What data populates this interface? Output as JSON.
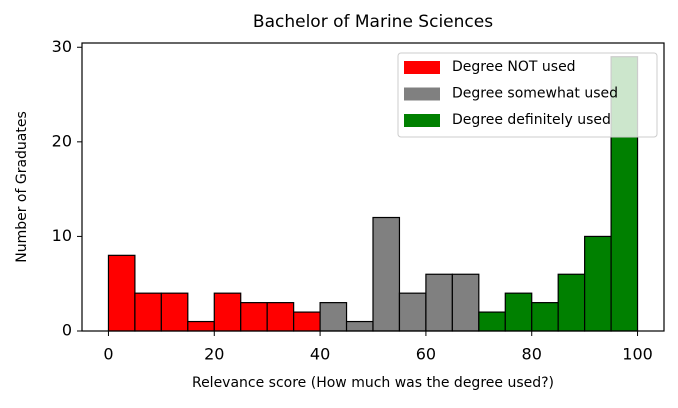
{
  "chart_data": {
    "type": "histogram",
    "title": "Bachelor of Marine Sciences",
    "x_label": "Relevance score (How much was the degree used?)",
    "y_label": "Number of Graduates",
    "series": [
      {
        "name": "Degree NOT used",
        "color": "#ff0000",
        "bins": [
          0,
          5,
          10,
          15,
          20,
          25,
          30,
          35,
          40
        ],
        "values": [
          8,
          4,
          4,
          1,
          4,
          3,
          3,
          2
        ]
      },
      {
        "name": "Degree somewhat used",
        "color": "#808080",
        "bins": [
          40,
          45,
          50,
          55,
          60,
          65,
          70
        ],
        "values": [
          3,
          1,
          12,
          4,
          6,
          6
        ]
      },
      {
        "name": "Degree definitely used",
        "color": "#008000",
        "bins": [
          70,
          75,
          80,
          85,
          90,
          95,
          100
        ],
        "values": [
          2,
          4,
          3,
          6,
          10,
          29
        ]
      }
    ],
    "xlim": [
      -5,
      105
    ],
    "xticks": [
      0,
      20,
      40,
      60,
      80,
      100
    ],
    "ylim": [
      0,
      30.45
    ],
    "yticks": [
      0,
      10,
      20,
      30
    ],
    "legend": "upper right",
    "grid": false
  }
}
